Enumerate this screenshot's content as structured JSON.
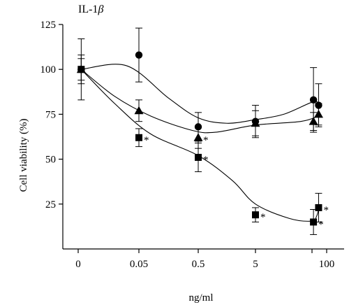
{
  "chart_data": {
    "type": "scatter",
    "title": "IL-1β",
    "title_main": "IL-1",
    "title_greek": "β",
    "xlabel": "ng/ml",
    "ylabel": "Cell viability (%)",
    "x_categories": [
      "0",
      "0.05",
      "0.5",
      "5",
      "",
      "100"
    ],
    "ylim": [
      0,
      125
    ],
    "yticks": [
      25,
      50,
      75,
      100,
      125
    ],
    "grid": false,
    "legend": "none",
    "significance_marker": "*",
    "series": [
      {
        "marker": "circle",
        "points": [
          {
            "x": 0.05,
            "y": 100,
            "err": 17
          },
          {
            "x": 1.0,
            "y": 108,
            "err": 15
          },
          {
            "x": 2.0,
            "y": 68,
            "err": 8
          },
          {
            "x": 3.0,
            "y": 71,
            "err": 9
          },
          {
            "x": 4.1,
            "y": 83,
            "err": 18
          },
          {
            "x": 4.45,
            "y": 80,
            "err": 12
          }
        ],
        "curve": [
          [
            0.05,
            100
          ],
          [
            0.8,
            102
          ],
          [
            1.5,
            84
          ],
          [
            2.0,
            73
          ],
          [
            2.5,
            70
          ],
          [
            3.0,
            72
          ],
          [
            3.5,
            75
          ],
          [
            4.1,
            82
          ],
          [
            4.45,
            80
          ]
        ]
      },
      {
        "marker": "triangle",
        "points": [
          {
            "x": 0.05,
            "y": 100,
            "err": 8
          },
          {
            "x": 1.0,
            "y": 77,
            "err": 6
          },
          {
            "x": 2.0,
            "y": 62,
            "err": 6,
            "sig": true
          },
          {
            "x": 3.0,
            "y": 70,
            "err": 7
          },
          {
            "x": 4.1,
            "y": 71,
            "err": 5
          },
          {
            "x": 4.45,
            "y": 75,
            "err": 6
          }
        ],
        "curve": [
          [
            0.05,
            100
          ],
          [
            0.6,
            85
          ],
          [
            1.2,
            74
          ],
          [
            1.9,
            66
          ],
          [
            2.3,
            65
          ],
          [
            3.0,
            69
          ],
          [
            3.8,
            71
          ],
          [
            4.45,
            74
          ]
        ]
      },
      {
        "marker": "square",
        "points": [
          {
            "x": 0.05,
            "y": 100,
            "err": 6
          },
          {
            "x": 1.0,
            "y": 62,
            "err": 5,
            "sig": true
          },
          {
            "x": 2.0,
            "y": 51,
            "err": 8,
            "sig": true
          },
          {
            "x": 3.0,
            "y": 19,
            "err": 4,
            "sig": true
          },
          {
            "x": 4.1,
            "y": 15,
            "err": 7,
            "sig": true
          },
          {
            "x": 4.45,
            "y": 23,
            "err": 8,
            "sig": true
          }
        ],
        "curve": [
          [
            0.05,
            100
          ],
          [
            0.6,
            81
          ],
          [
            1.2,
            64
          ],
          [
            2.0,
            52
          ],
          [
            2.6,
            38
          ],
          [
            3.0,
            25
          ],
          [
            3.6,
            17
          ],
          [
            4.0,
            15.5
          ],
          [
            4.3,
            18
          ],
          [
            4.45,
            22
          ]
        ]
      }
    ]
  }
}
